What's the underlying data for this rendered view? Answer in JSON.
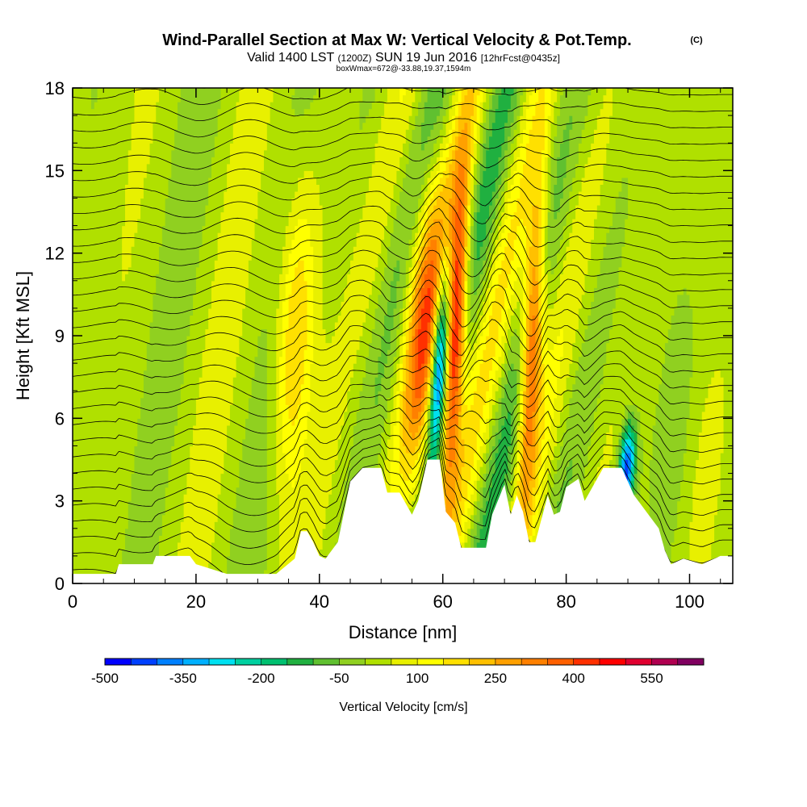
{
  "header": {
    "title": "Wind-Parallel Section at Max W: Vertical Velocity & Pot.Temp.",
    "copyright": "(C)",
    "valid_prefix": "Valid 1400 LST",
    "valid_utc": "(1200Z)",
    "valid_date": "SUN 19 Jun 2016",
    "forecast": "[12hrFcst@0435z]",
    "box_info": "boxWmax=672@-33.88,19.37,1594m"
  },
  "chart_data": {
    "type": "heatmap",
    "title": "Wind-Parallel Section at Max W: Vertical Velocity & Pot.Temp.",
    "xlabel": "Distance [nm]",
    "ylabel": "Height [Kft MSL]",
    "xlim": [
      0,
      107
    ],
    "ylim": [
      0,
      18
    ],
    "x_ticks": [
      "0",
      "20",
      "40",
      "60",
      "80",
      "100"
    ],
    "y_ticks": [
      "0",
      "3",
      "6",
      "9",
      "12",
      "15",
      "18"
    ],
    "colorbar": {
      "label": "Vertical Velocity [cm/s]",
      "tick_labels": [
        "-500",
        "-350",
        "-200",
        "-50",
        "100",
        "250",
        "400",
        "550"
      ],
      "levels": [
        -500,
        -450,
        -400,
        -350,
        -300,
        -250,
        -200,
        -150,
        -100,
        -50,
        0,
        50,
        100,
        150,
        200,
        250,
        300,
        350,
        400,
        450,
        500,
        550,
        600
      ],
      "colors": [
        "#0000ff",
        "#0040ff",
        "#0080ff",
        "#00b0ff",
        "#00e0f0",
        "#00d0a0",
        "#00c070",
        "#20b040",
        "#60c030",
        "#90d020",
        "#b0e000",
        "#e8f000",
        "#ffff00",
        "#ffe000",
        "#ffc000",
        "#ffa000",
        "#ff8000",
        "#ff6000",
        "#ff3000",
        "#ff0000",
        "#e00030",
        "#b00050",
        "#800060"
      ]
    },
    "updraft_peaks": [
      {
        "x": 62,
        "w_max": 550
      },
      {
        "x": 74.5,
        "w_max": 400
      },
      {
        "x": 57,
        "w_max": 300
      },
      {
        "x": 36,
        "w_max": 200
      }
    ],
    "downdraft_peaks": [
      {
        "x": 59.5,
        "w_min": -500
      },
      {
        "x": 91,
        "w_min": -450
      }
    ],
    "terrain_kft": [
      {
        "x": 0,
        "z": 0.35
      },
      {
        "x": 7,
        "z": 0.35
      },
      {
        "x": 7.5,
        "z": 0.7
      },
      {
        "x": 13,
        "z": 0.7
      },
      {
        "x": 13.5,
        "z": 1.0
      },
      {
        "x": 19,
        "z": 1.0
      },
      {
        "x": 20,
        "z": 0.7
      },
      {
        "x": 25,
        "z": 0.35
      },
      {
        "x": 33,
        "z": 0.35
      },
      {
        "x": 36,
        "z": 0.9
      },
      {
        "x": 37,
        "z": 1.9
      },
      {
        "x": 38,
        "z": 1.9
      },
      {
        "x": 39,
        "z": 1.5
      },
      {
        "x": 40,
        "z": 1.0
      },
      {
        "x": 41,
        "z": 0.9
      },
      {
        "x": 43,
        "z": 1.5
      },
      {
        "x": 45,
        "z": 3.7
      },
      {
        "x": 47,
        "z": 4.2
      },
      {
        "x": 50,
        "z": 4.2
      },
      {
        "x": 51,
        "z": 3.3
      },
      {
        "x": 53,
        "z": 3.3
      },
      {
        "x": 55,
        "z": 2.5
      },
      {
        "x": 56,
        "z": 3.0
      },
      {
        "x": 57.5,
        "z": 4.5
      },
      {
        "x": 59.5,
        "z": 4.5
      },
      {
        "x": 60.5,
        "z": 2.6
      },
      {
        "x": 62,
        "z": 2.2
      },
      {
        "x": 63,
        "z": 1.3
      },
      {
        "x": 67,
        "z": 1.3
      },
      {
        "x": 68,
        "z": 2.5
      },
      {
        "x": 70,
        "z": 3.6
      },
      {
        "x": 71,
        "z": 2.5
      },
      {
        "x": 72,
        "z": 3.2
      },
      {
        "x": 73,
        "z": 2.6
      },
      {
        "x": 74,
        "z": 1.5
      },
      {
        "x": 75,
        "z": 1.5
      },
      {
        "x": 77,
        "z": 3.2
      },
      {
        "x": 78,
        "z": 2.5
      },
      {
        "x": 79,
        "z": 2.6
      },
      {
        "x": 80,
        "z": 3.5
      },
      {
        "x": 82,
        "z": 3.8
      },
      {
        "x": 83,
        "z": 3.0
      },
      {
        "x": 86,
        "z": 4.2
      },
      {
        "x": 89,
        "z": 4.2
      },
      {
        "x": 91,
        "z": 3.2
      },
      {
        "x": 93,
        "z": 2.6
      },
      {
        "x": 95,
        "z": 2.0
      },
      {
        "x": 96,
        "z": 1.2
      },
      {
        "x": 97,
        "z": 0.7
      },
      {
        "x": 99,
        "z": 0.9
      },
      {
        "x": 102,
        "z": 0.7
      },
      {
        "x": 105,
        "z": 1.0
      },
      {
        "x": 107,
        "z": 1.0
      }
    ]
  }
}
